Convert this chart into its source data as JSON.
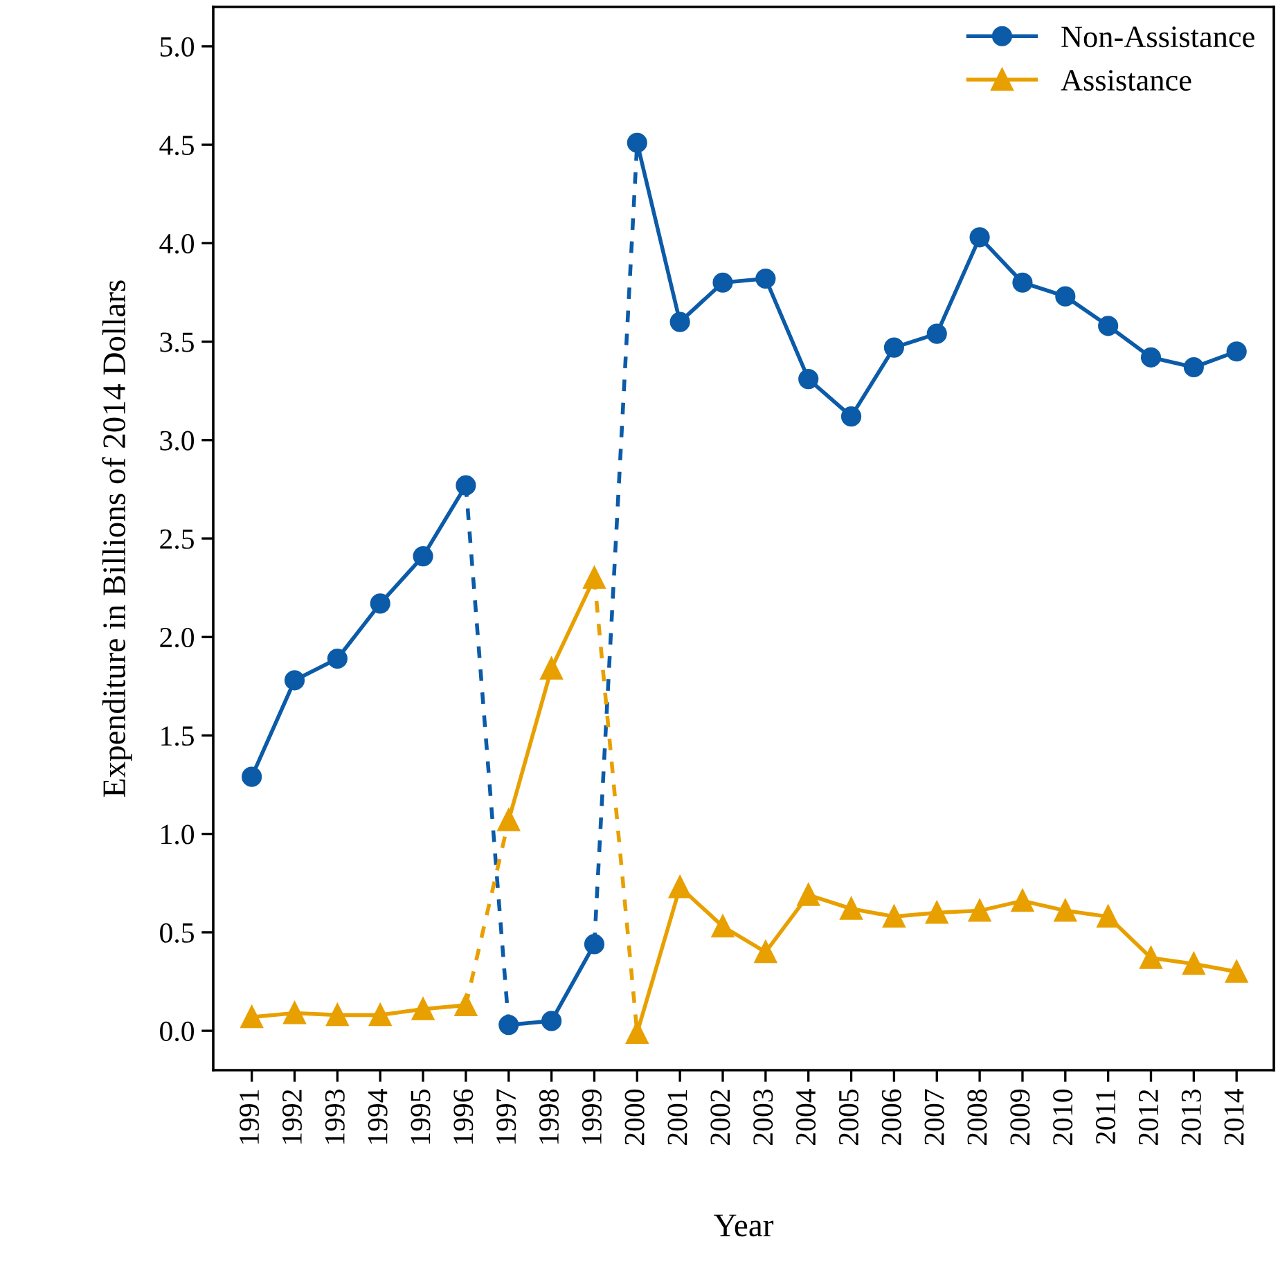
{
  "chart_data": {
    "type": "line",
    "xlabel": "Year",
    "ylabel": "Expenditure in Billions of 2014 Dollars",
    "xlim": [
      1990.1,
      2014.87
    ],
    "xticks": [
      1991,
      1992,
      1993,
      1994,
      1995,
      1996,
      1997,
      1998,
      1999,
      2000,
      2001,
      2002,
      2003,
      2004,
      2005,
      2006,
      2007,
      2008,
      2009,
      2010,
      2011,
      2012,
      2013,
      2014
    ],
    "ylim": [
      -0.2,
      5.2
    ],
    "yticks": [
      {
        "value": 0,
        "label": "0.0"
      },
      {
        "value": 0.5,
        "label": "0.5"
      },
      {
        "value": 1,
        "label": "1.0"
      },
      {
        "value": 1.5,
        "label": "1.5"
      },
      {
        "value": 2,
        "label": "2.0"
      },
      {
        "value": 2.5,
        "label": "2.5"
      },
      {
        "value": 3,
        "label": "3.0"
      },
      {
        "value": 3.5,
        "label": "3.5"
      },
      {
        "value": 4,
        "label": "4.0"
      },
      {
        "value": 4.5,
        "label": "4.5"
      },
      {
        "value": 5,
        "label": "5.0"
      }
    ],
    "grid": false,
    "legend": "top right",
    "series": [
      {
        "name": "Non-Assistance",
        "color": "#0b5ba8",
        "marker": "circle",
        "line_style": "solid",
        "x": [
          1997,
          1998,
          1999
        ],
        "values": [
          0.03,
          0.05,
          0.44
        ]
      },
      {
        "color": "#0b5ba8",
        "marker": "circle",
        "line_style": "solid",
        "x": [
          2000,
          2001,
          2002,
          2003,
          2004,
          2005,
          2006,
          2007,
          2008,
          2009,
          2010,
          2011,
          2012,
          2013,
          2014
        ],
        "values": [
          4.51,
          3.6,
          3.8,
          3.82,
          3.31,
          3.12,
          3.47,
          3.54,
          4.03,
          3.8,
          3.73,
          3.58,
          3.42,
          3.37,
          3.45
        ]
      },
      {
        "color": "#0b5ba8",
        "marker": "circle",
        "line_style": "solid",
        "x": [
          1991,
          1992,
          1993,
          1994,
          1995,
          1996
        ],
        "values": [
          1.29,
          1.78,
          1.89,
          2.17,
          2.41,
          2.77
        ]
      },
      {
        "color": "#0b5ba8",
        "marker": "none",
        "line_style": "dashed",
        "x": [
          1996,
          1997
        ],
        "values": [
          2.77,
          0.03
        ]
      },
      {
        "color": "#0b5ba8",
        "marker": "none",
        "line_style": "dashed",
        "x": [
          1999,
          2000
        ],
        "values": [
          0.44,
          4.51
        ]
      },
      {
        "name": "Assistance",
        "color": "#e8a000",
        "marker": "triangle",
        "line_style": "solid",
        "x": [
          1997,
          1998,
          1999
        ],
        "values": [
          1.07,
          1.84,
          2.3
        ]
      },
      {
        "color": "#e8a000",
        "marker": "triangle",
        "line_style": "solid",
        "x": [
          2000,
          2001,
          2002,
          2003,
          2004,
          2005,
          2006,
          2007,
          2008,
          2009,
          2010,
          2011,
          2012,
          2013,
          2014
        ],
        "values": [
          -0.01,
          0.73,
          0.53,
          0.4,
          0.69,
          0.62,
          0.58,
          0.6,
          0.61,
          0.66,
          0.61,
          0.58,
          0.37,
          0.34,
          0.3
        ]
      },
      {
        "color": "#e8a000",
        "marker": "triangle",
        "line_style": "solid",
        "x": [
          1991,
          1992,
          1993,
          1994,
          1995,
          1996
        ],
        "values": [
          0.07,
          0.09,
          0.08,
          0.08,
          0.11,
          0.13
        ]
      },
      {
        "color": "#e8a000",
        "marker": "none",
        "line_style": "dashed",
        "x": [
          1996,
          1997
        ],
        "values": [
          0.13,
          1.07
        ]
      },
      {
        "color": "#e8a000",
        "marker": "none",
        "line_style": "dashed",
        "x": [
          1999,
          2000
        ],
        "values": [
          2.3,
          -0.01
        ]
      }
    ]
  }
}
